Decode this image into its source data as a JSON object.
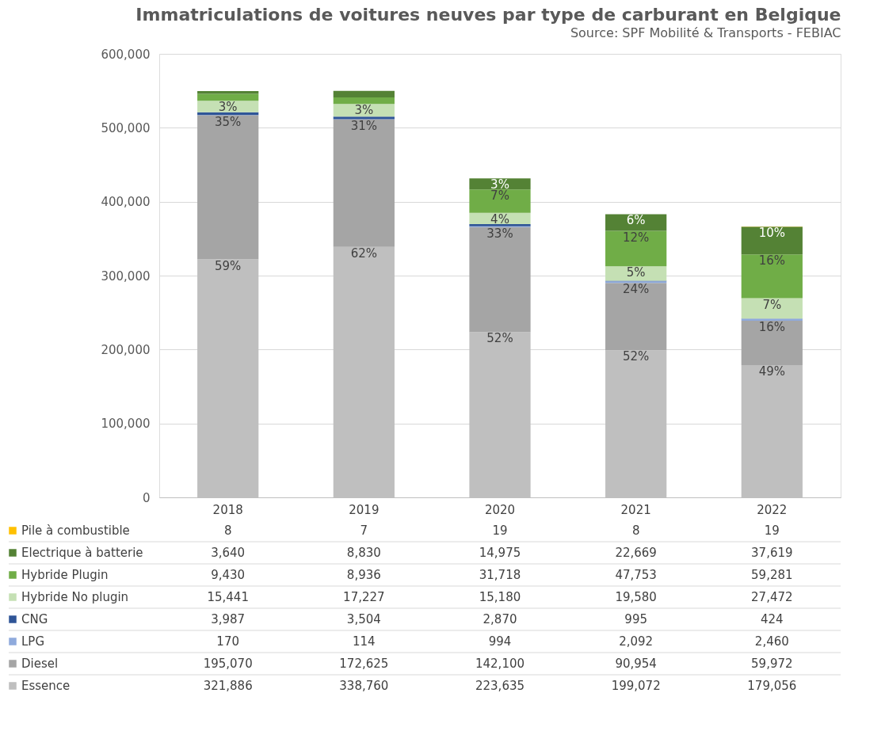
{
  "chart_data": {
    "type": "bar",
    "title": "Immatriculations de voitures neuves par type de carburant en Belgique",
    "subtitle": "Source: SPF Mobilité & Transports - FEBIAC",
    "categories": [
      "2018",
      "2019",
      "2020",
      "2021",
      "2022"
    ],
    "stacked": true,
    "grid": "y",
    "legend": "bottom",
    "ylim": [
      0,
      600000
    ],
    "yticks": [
      {
        "value": 0,
        "label": "0"
      },
      {
        "value": 100000,
        "label": "100,000"
      },
      {
        "value": 200000,
        "label": "200,000"
      },
      {
        "value": 300000,
        "label": "300,000"
      },
      {
        "value": 400000,
        "label": "400,000"
      },
      {
        "value": 500000,
        "label": "500,000"
      },
      {
        "value": 600000,
        "label": "600,000"
      }
    ],
    "series": [
      {
        "name": "Essence",
        "color": "#bfbfbf",
        "values": [
          321886,
          338760,
          223635,
          199072,
          179056
        ],
        "value_labels": [
          "321,886",
          "338,760",
          "223,635",
          "199,072",
          "179,056"
        ]
      },
      {
        "name": "Diesel",
        "color": "#a5a5a5",
        "values": [
          195070,
          172625,
          142100,
          90954,
          59972
        ],
        "value_labels": [
          "195,070",
          "172,625",
          "142,100",
          "90,954",
          "59,972"
        ]
      },
      {
        "name": "LPG",
        "color": "#8faadc",
        "values": [
          170,
          114,
          994,
          2092,
          2460
        ],
        "value_labels": [
          "170",
          "114",
          "994",
          "2,092",
          "2,460"
        ]
      },
      {
        "name": "CNG",
        "color": "#2f5597",
        "values": [
          3987,
          3504,
          2870,
          995,
          424
        ],
        "value_labels": [
          "3,987",
          "3,504",
          "2,870",
          "995",
          "424"
        ]
      },
      {
        "name": "Hybride No plugin",
        "color": "#c5e0b4",
        "values": [
          15441,
          17227,
          15180,
          19580,
          27472
        ],
        "value_labels": [
          "15,441",
          "17,227",
          "15,180",
          "19,580",
          "27,472"
        ]
      },
      {
        "name": "Hybride Plugin",
        "color": "#70ad47",
        "values": [
          9430,
          8936,
          31718,
          47753,
          59281
        ],
        "value_labels": [
          "9,430",
          "8,936",
          "31,718",
          "47,753",
          "59,281"
        ]
      },
      {
        "name": "Electrique à batterie",
        "color": "#548235",
        "values": [
          3640,
          8830,
          14975,
          22669,
          37619
        ],
        "value_labels": [
          "3,640",
          "8,830",
          "14,975",
          "22,669",
          "37,619"
        ]
      },
      {
        "name": "Pile à combustible",
        "color": "#ffc000",
        "values": [
          8,
          7,
          19,
          8,
          19
        ],
        "value_labels": [
          "8",
          "7",
          "19",
          "8",
          "19"
        ]
      }
    ],
    "annotations": [
      {
        "text": "59%",
        "x": "2018",
        "y": 321886
      },
      {
        "text": "62%",
        "x": "2019",
        "y": 338760
      },
      {
        "text": "52%",
        "x": "2020",
        "y": 223635
      },
      {
        "text": "52%",
        "x": "2021",
        "y": 199072
      },
      {
        "text": "49%",
        "x": "2022",
        "y": 179056
      },
      {
        "text": "35%",
        "x": "2018",
        "y": 516956
      },
      {
        "text": "31%",
        "x": "2019",
        "y": 511385
      },
      {
        "text": "33%",
        "x": "2020",
        "y": 365735
      },
      {
        "text": "24%",
        "x": "2021",
        "y": 290026
      },
      {
        "text": "16%",
        "x": "2022",
        "y": 239028
      },
      {
        "text": "3%",
        "x": "2018",
        "y": 536554
      },
      {
        "text": "3%",
        "x": "2019",
        "y": 532230
      },
      {
        "text": "4%",
        "x": "2020",
        "y": 384779
      },
      {
        "text": "5%",
        "x": "2021",
        "y": 312693
      },
      {
        "text": "7%",
        "x": "2022",
        "y": 269384
      },
      {
        "text": "7%",
        "x": "2020",
        "y": 416497
      },
      {
        "text": "12%",
        "x": "2021",
        "y": 360446
      },
      {
        "text": "16%",
        "x": "2022",
        "y": 328665
      },
      {
        "text": "3%",
        "x": "2020",
        "y": 431472
      },
      {
        "text": "6%",
        "x": "2021",
        "y": 383115
      },
      {
        "text": "10%",
        "x": "2022",
        "y": 366284
      }
    ]
  }
}
